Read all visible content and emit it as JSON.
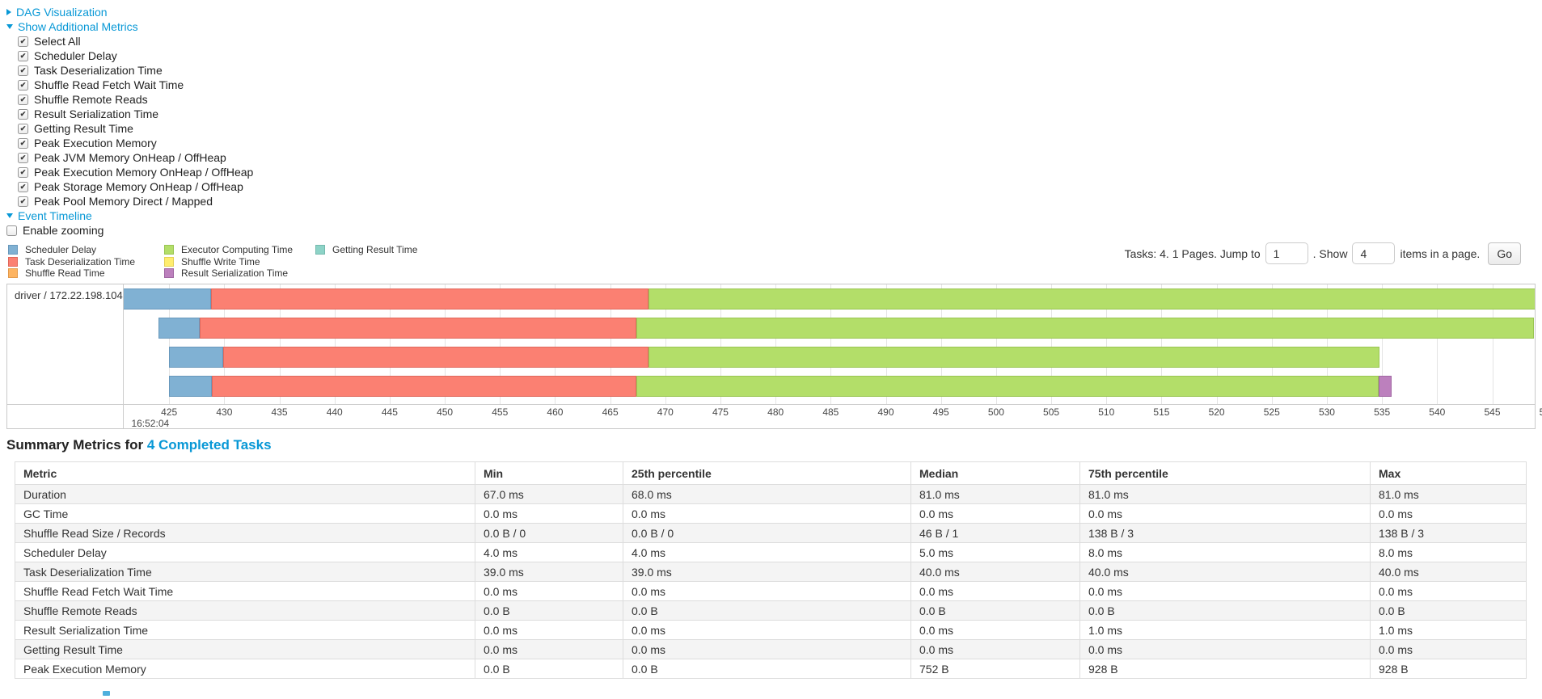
{
  "page": {
    "dag_section": {
      "label": "DAG Visualization"
    },
    "metrics_section": {
      "label": "Show Additional Metrics",
      "items": [
        {
          "label": "Select All",
          "checked": true
        },
        {
          "label": "Scheduler Delay",
          "checked": true
        },
        {
          "label": "Task Deserialization Time",
          "checked": true
        },
        {
          "label": "Shuffle Read Fetch Wait Time",
          "checked": true
        },
        {
          "label": "Shuffle Remote Reads",
          "checked": true
        },
        {
          "label": "Result Serialization Time",
          "checked": true
        },
        {
          "label": "Getting Result Time",
          "checked": true
        },
        {
          "label": "Peak Execution Memory",
          "checked": true
        },
        {
          "label": "Peak JVM Memory OnHeap / OffHeap",
          "checked": true
        },
        {
          "label": "Peak Execution Memory OnHeap / OffHeap",
          "checked": true
        },
        {
          "label": "Peak Storage Memory OnHeap / OffHeap",
          "checked": true
        },
        {
          "label": "Peak Pool Memory Direct / Mapped",
          "checked": true
        }
      ]
    },
    "event_timeline_section": {
      "label": "Event Timeline"
    },
    "enable_zooming": {
      "label": "Enable zooming",
      "checked": false
    },
    "pagination": {
      "tasks_info": "Tasks: 4. 1 Pages. Jump to",
      "jump_value": "1",
      "show_label": ". Show",
      "show_value": "4",
      "items_label": "items in a page.",
      "go_label": "Go"
    },
    "summary": {
      "title_prefix": "Summary Metrics for ",
      "title_link": "4 Completed Tasks"
    },
    "table": {
      "columns": [
        "Metric",
        "Min",
        "25th percentile",
        "Median",
        "75th percentile",
        "Max"
      ],
      "rows": [
        [
          "Duration",
          "67.0 ms",
          "68.0 ms",
          "81.0 ms",
          "81.0 ms",
          "81.0 ms"
        ],
        [
          "GC Time",
          "0.0 ms",
          "0.0 ms",
          "0.0 ms",
          "0.0 ms",
          "0.0 ms"
        ],
        [
          "Shuffle Read Size / Records",
          "0.0 B / 0",
          "0.0 B / 0",
          "46 B / 1",
          "138 B / 3",
          "138 B / 3"
        ],
        [
          "Scheduler Delay",
          "4.0 ms",
          "4.0 ms",
          "5.0 ms",
          "8.0 ms",
          "8.0 ms"
        ],
        [
          "Task Deserialization Time",
          "39.0 ms",
          "39.0 ms",
          "40.0 ms",
          "40.0 ms",
          "40.0 ms"
        ],
        [
          "Shuffle Read Fetch Wait Time",
          "0.0 ms",
          "0.0 ms",
          "0.0 ms",
          "0.0 ms",
          "0.0 ms"
        ],
        [
          "Shuffle Remote Reads",
          "0.0 B",
          "0.0 B",
          "0.0 B",
          "0.0 B",
          "0.0 B"
        ],
        [
          "Result Serialization Time",
          "0.0 ms",
          "0.0 ms",
          "0.0 ms",
          "1.0 ms",
          "1.0 ms"
        ],
        [
          "Getting Result Time",
          "0.0 ms",
          "0.0 ms",
          "0.0 ms",
          "0.0 ms",
          "0.0 ms"
        ],
        [
          "Peak Execution Memory",
          "0.0 B",
          "0.0 B",
          "752 B",
          "928 B",
          "928 B"
        ]
      ]
    },
    "colors": {
      "link": "#0898d6",
      "table_border": "#dddddd",
      "stripe": "#f4f4f4"
    }
  },
  "chart_data": {
    "type": "timeline",
    "title": "Event Timeline",
    "row_label": "driver / 172.22.198.104",
    "x_axis": {
      "domain_min": 420.88,
      "domain_max": 548.85,
      "tick_start": 425,
      "tick_step": 5,
      "tick_end": 550,
      "time_label": "16:52:04"
    },
    "legend_order": [
      "scheduler_delay",
      "task_deserialization",
      "shuffle_read",
      "executor_computing",
      "shuffle_write",
      "result_serialization",
      "getting_result"
    ],
    "legend": {
      "scheduler_delay": {
        "label": "Scheduler Delay",
        "fill": "#80B1D3",
        "stroke": "#6898BC"
      },
      "task_deserialization": {
        "label": "Task Deserialization Time",
        "fill": "#FB8072",
        "stroke": "#E0685C"
      },
      "shuffle_read": {
        "label": "Shuffle Read Time",
        "fill": "#FDB462",
        "stroke": "#E39A4B"
      },
      "executor_computing": {
        "label": "Executor Computing Time",
        "fill": "#B3DE69",
        "stroke": "#99C552"
      },
      "shuffle_write": {
        "label": "Shuffle Write Time",
        "fill": "#FFED6F",
        "stroke": "#E4D158"
      },
      "result_serialization": {
        "label": "Result Serialization Time",
        "fill": "#BC80BD",
        "stroke": "#A066A2"
      },
      "getting_result": {
        "label": "Getting Result Time",
        "fill": "#8DD3C7",
        "stroke": "#74B9AD"
      }
    },
    "tasks": [
      {
        "name": "task-0",
        "segments": [
          [
            "scheduler_delay",
            420.8,
            428.8
          ],
          [
            "task_deserialization",
            428.8,
            468.5
          ],
          [
            "executor_computing",
            468.5,
            549.6
          ]
        ]
      },
      {
        "name": "task-1",
        "segments": [
          [
            "scheduler_delay",
            424.0,
            427.8
          ],
          [
            "task_deserialization",
            427.8,
            467.4
          ],
          [
            "executor_computing",
            467.4,
            548.8
          ]
        ]
      },
      {
        "name": "task-2",
        "segments": [
          [
            "scheduler_delay",
            425.0,
            429.9
          ],
          [
            "task_deserialization",
            429.9,
            468.5
          ],
          [
            "executor_computing",
            468.5,
            534.8
          ]
        ]
      },
      {
        "name": "task-3",
        "segments": [
          [
            "scheduler_delay",
            425.0,
            428.9
          ],
          [
            "task_deserialization",
            428.9,
            467.4
          ],
          [
            "executor_computing",
            467.4,
            534.7
          ],
          [
            "result_serialization",
            534.7,
            535.9
          ]
        ]
      }
    ]
  }
}
